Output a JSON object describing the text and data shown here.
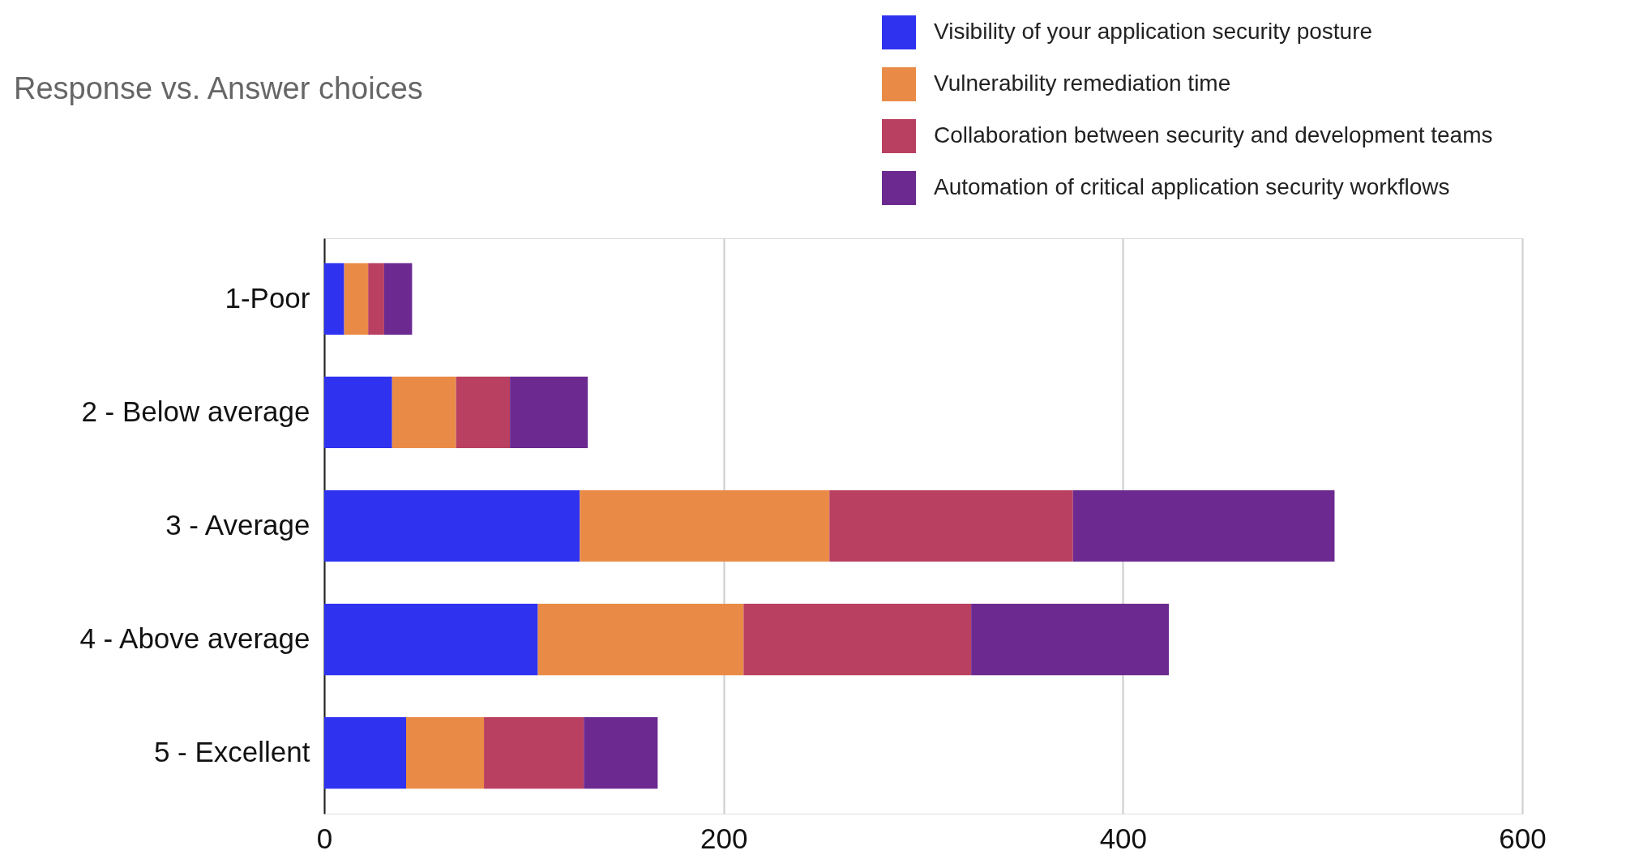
{
  "chart_data": {
    "type": "bar",
    "orientation": "horizontal",
    "stacked": true,
    "title": "Response vs. Answer choices",
    "categories": [
      "1-Poor",
      "2 - Below average",
      "3 - Average",
      "4 - Above average",
      "5 - Excellent"
    ],
    "series": [
      {
        "name": "Visibility of your application security posture",
        "color": "#2f32ef",
        "values": [
          10,
          34,
          128,
          107,
          41
        ]
      },
      {
        "name": "Vulnerability remediation time",
        "color": "#e98b47",
        "values": [
          12,
          32,
          125,
          103,
          39
        ]
      },
      {
        "name": "Collaboration between security and development teams",
        "color": "#b94060",
        "values": [
          8,
          27,
          122,
          114,
          50
        ]
      },
      {
        "name": "Automation of critical application security workflows",
        "color": "#6c2a91",
        "values": [
          14,
          39,
          131,
          99,
          37
        ]
      }
    ],
    "xlim": [
      0,
      600
    ],
    "xticks": [
      0,
      200,
      400,
      600
    ],
    "grid": "x",
    "legend": "top right"
  }
}
